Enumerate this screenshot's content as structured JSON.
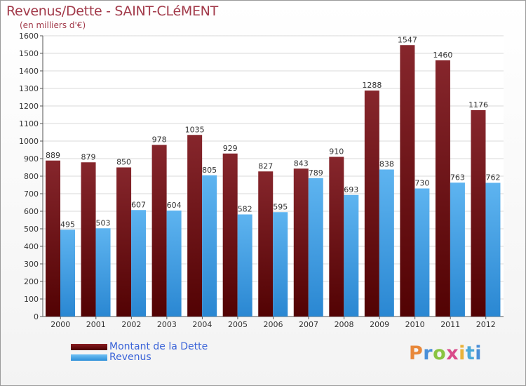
{
  "chart_data": {
    "type": "bar",
    "title": "Revenus/Dette - SAINT-CLéMENT",
    "subtitle": "(en milliers d'€)",
    "categories": [
      "2000",
      "2001",
      "2002",
      "2003",
      "2004",
      "2005",
      "2006",
      "2007",
      "2008",
      "2009",
      "2010",
      "2011",
      "2012"
    ],
    "series": [
      {
        "name": "Montant de la Dette",
        "color": "#6b0f12",
        "values": [
          889,
          879,
          850,
          978,
          1035,
          929,
          827,
          843,
          910,
          1288,
          1547,
          1460,
          1176
        ]
      },
      {
        "name": "Revenus",
        "color": "#3b9be6",
        "values": [
          495,
          503,
          607,
          604,
          805,
          582,
          595,
          789,
          693,
          838,
          730,
          763,
          762
        ]
      }
    ],
    "yticks": [
      0,
      100,
      200,
      300,
      400,
      500,
      600,
      700,
      800,
      900,
      1000,
      1100,
      1200,
      1300,
      1400,
      1500,
      1600
    ],
    "ylim": [
      0,
      1600
    ],
    "xlabel": "",
    "ylabel": "",
    "grid": true,
    "legend_position": "bottom-left"
  },
  "logo": {
    "letters": [
      "P",
      "r",
      "o",
      "x",
      "i",
      "t",
      "i"
    ]
  }
}
